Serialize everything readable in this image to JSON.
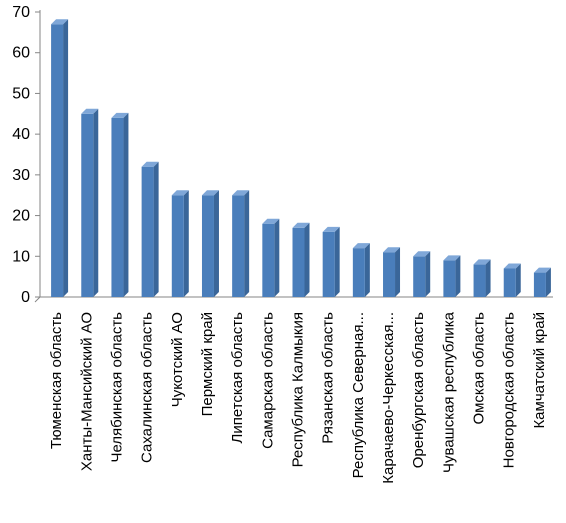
{
  "chart_data": {
    "type": "bar",
    "style": "3d-column",
    "bar_color": "#4A7EBB",
    "bar_side_color": "#3A6699",
    "bar_top_color": "#7FA7D8",
    "axis_color": "#868686",
    "categories": [
      "Тюменская область",
      "Ханты-Мансийский АО",
      "Челябинская область",
      "Сахалинская область",
      "Чукотский АО",
      "Пермский край",
      "Липетская область",
      "Самарская область",
      "Республика Калмыкия",
      "Рязанская область",
      "Республика Северная...",
      "Карачаево-Черкесская...",
      "Оренбургская область",
      "Чувашская республика",
      "Омская область",
      "Новгородская область",
      "Камчатский край"
    ],
    "values": [
      67,
      45,
      44,
      32,
      25,
      25,
      25,
      18,
      17,
      16,
      12,
      11,
      10,
      9,
      8,
      7,
      6
    ],
    "ylim": [
      0,
      70
    ],
    "yticks": [
      "0",
      "10",
      "20",
      "30",
      "40",
      "50",
      "60",
      "70"
    ],
    "grid": false,
    "legend": "none"
  }
}
